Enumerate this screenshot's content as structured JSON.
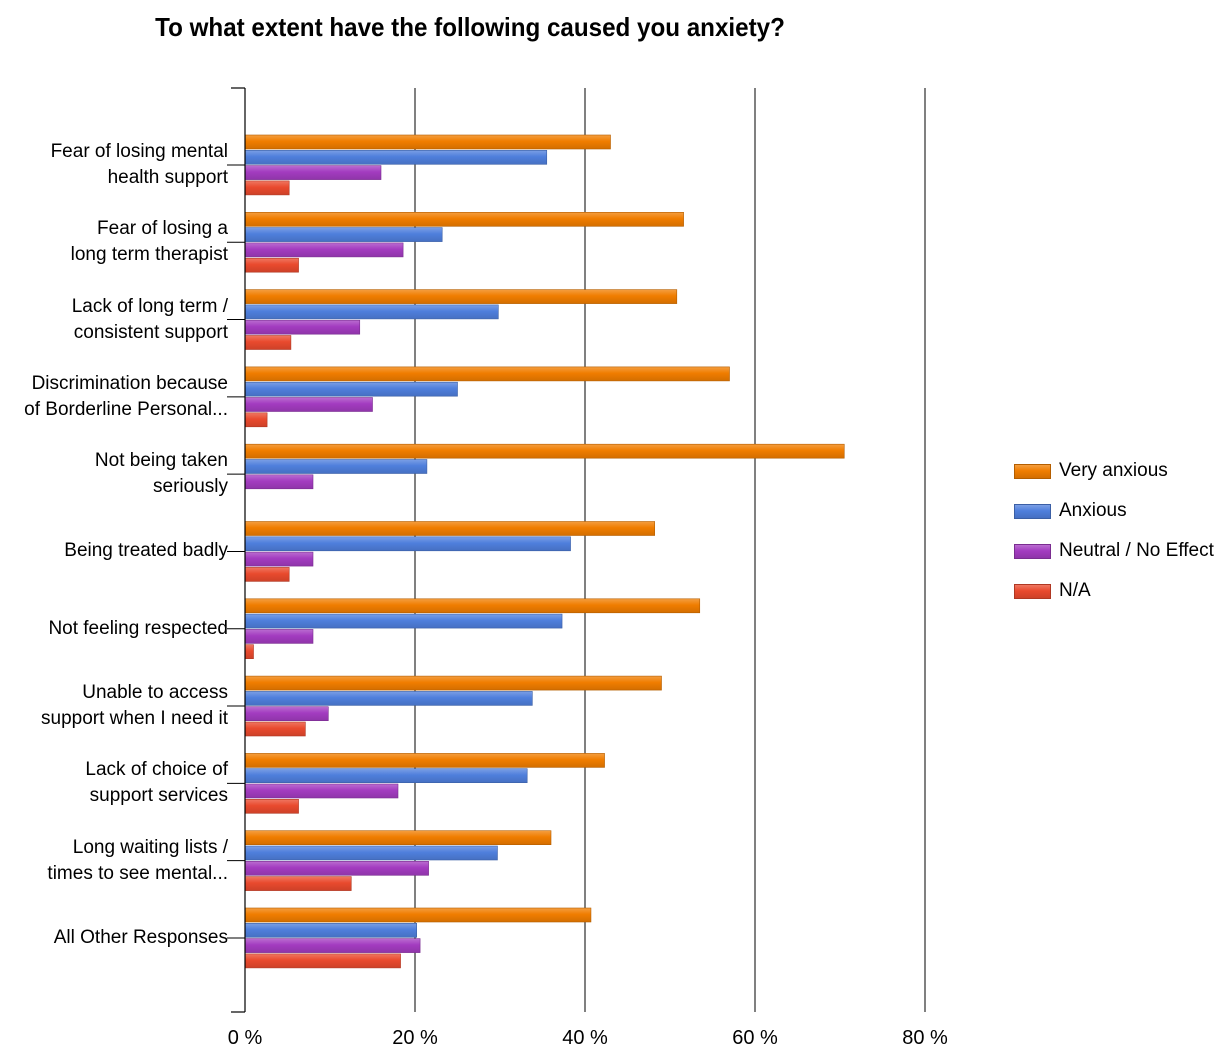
{
  "chart_data": {
    "type": "bar",
    "orientation": "horizontal",
    "title": "To what extent have the following caused you anxiety?",
    "categories": [
      [
        "Fear of losing mental",
        "health support"
      ],
      [
        "Fear of losing a",
        "long term therapist"
      ],
      [
        "Lack of long term /",
        "consistent support"
      ],
      [
        "Discrimination because",
        "of Borderline Personal..."
      ],
      [
        "Not being taken",
        "seriously"
      ],
      [
        "Being treated badly"
      ],
      [
        "Not feeling respected"
      ],
      [
        "Unable to access",
        "support when I need it"
      ],
      [
        "Lack of choice of",
        "support services"
      ],
      [
        "Long waiting lists /",
        "times to see mental..."
      ],
      [
        "All Other Responses"
      ]
    ],
    "series": [
      {
        "name": "Very anxious",
        "color": "#f07d00",
        "values": [
          43,
          51.6,
          50.8,
          57,
          70.5,
          48.2,
          53.5,
          49,
          42.3,
          36,
          40.7
        ]
      },
      {
        "name": "Anxious",
        "color": "#4f7fdc",
        "values": [
          35.5,
          23.2,
          29.8,
          25,
          21.4,
          38.3,
          37.3,
          33.8,
          33.2,
          29.7,
          20.2
        ]
      },
      {
        "name": "Neutral / No Effect",
        "color": "#a33cc0",
        "values": [
          16,
          18.6,
          13.5,
          15,
          8,
          8,
          8,
          9.8,
          18,
          21.6,
          20.6
        ]
      },
      {
        "name": "N/A",
        "color": "#e94a2e",
        "values": [
          5.2,
          6.3,
          5.4,
          2.6,
          0,
          5.2,
          1,
          7.1,
          6.3,
          12.5,
          18.3
        ]
      }
    ],
    "x_ticks": [
      "0 %",
      "20 %",
      "40 %",
      "60 %",
      "80 %"
    ],
    "xlim": [
      0,
      80
    ],
    "grid": "vertical",
    "legend_position": "right"
  }
}
